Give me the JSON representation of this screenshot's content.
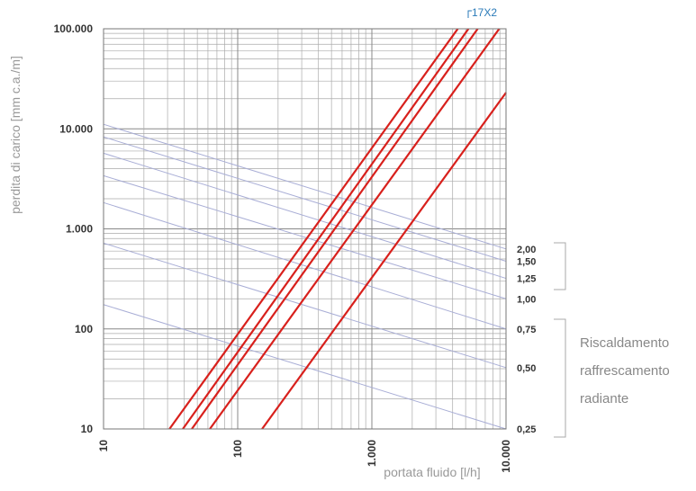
{
  "chart_data": {
    "type": "line",
    "y_label": "perdita di carico  [mm c.a./m]",
    "x_label": "portata fluido  [l/h]",
    "xlog": true,
    "ylog": true,
    "grid": true,
    "xlim": [
      10,
      10000
    ],
    "ylim": [
      10,
      100000
    ],
    "xticks": [
      10,
      100,
      {
        "value": 1000,
        "label": "1.000"
      },
      {
        "value": 10000,
        "label": "10.000"
      }
    ],
    "yticks": [
      10,
      100,
      {
        "value": 1000,
        "label": "1.000"
      },
      {
        "value": 10000,
        "label": "10.000"
      },
      {
        "value": 100000,
        "label": "100.000"
      }
    ],
    "series": [
      {
        "name": "2,00",
        "color": "#a9aed6",
        "x": [
          10,
          10000
        ],
        "values": [
          11100,
          630
        ]
      },
      {
        "name": "1,50",
        "color": "#a9aed6",
        "x": [
          10,
          10000
        ],
        "values": [
          8300,
          475
        ]
      },
      {
        "name": "1,25",
        "color": "#a9aed6",
        "x": [
          10,
          10000
        ],
        "values": [
          5700,
          320
        ]
      },
      {
        "name": "1,00",
        "color": "#a9aed6",
        "x": [
          10,
          10000
        ],
        "values": [
          3400,
          200
        ]
      },
      {
        "name": "0,75",
        "color": "#a9aed6",
        "x": [
          10,
          10000
        ],
        "values": [
          1830,
          100
        ]
      },
      {
        "name": "0,50",
        "color": "#a9aed6",
        "x": [
          10,
          10000
        ],
        "values": [
          720,
          41
        ]
      },
      {
        "name": "0,25",
        "color": "#a9aed6",
        "x": [
          10,
          10000
        ],
        "values": [
          175,
          10
        ]
      },
      {
        "color": "#d8201c",
        "x": [
          31,
          4370
        ],
        "values": [
          10,
          100000
        ]
      },
      {
        "color": "#d8201c",
        "x": [
          39,
          5250
        ],
        "values": [
          10,
          100000
        ]
      },
      {
        "color": "#d8201c",
        "x": [
          45.5,
          6150
        ],
        "values": [
          10,
          100000
        ]
      },
      {
        "color": "#d8201c",
        "x": [
          62,
          8900
        ],
        "values": [
          10,
          100000
        ]
      },
      {
        "color": "#d8201c",
        "x": [
          152,
          10000
        ],
        "values": [
          10,
          23000
        ]
      }
    ],
    "annotation": "17X2",
    "group_label": [
      "Riscaldamento",
      "raffrescamento",
      "radiante"
    ]
  }
}
